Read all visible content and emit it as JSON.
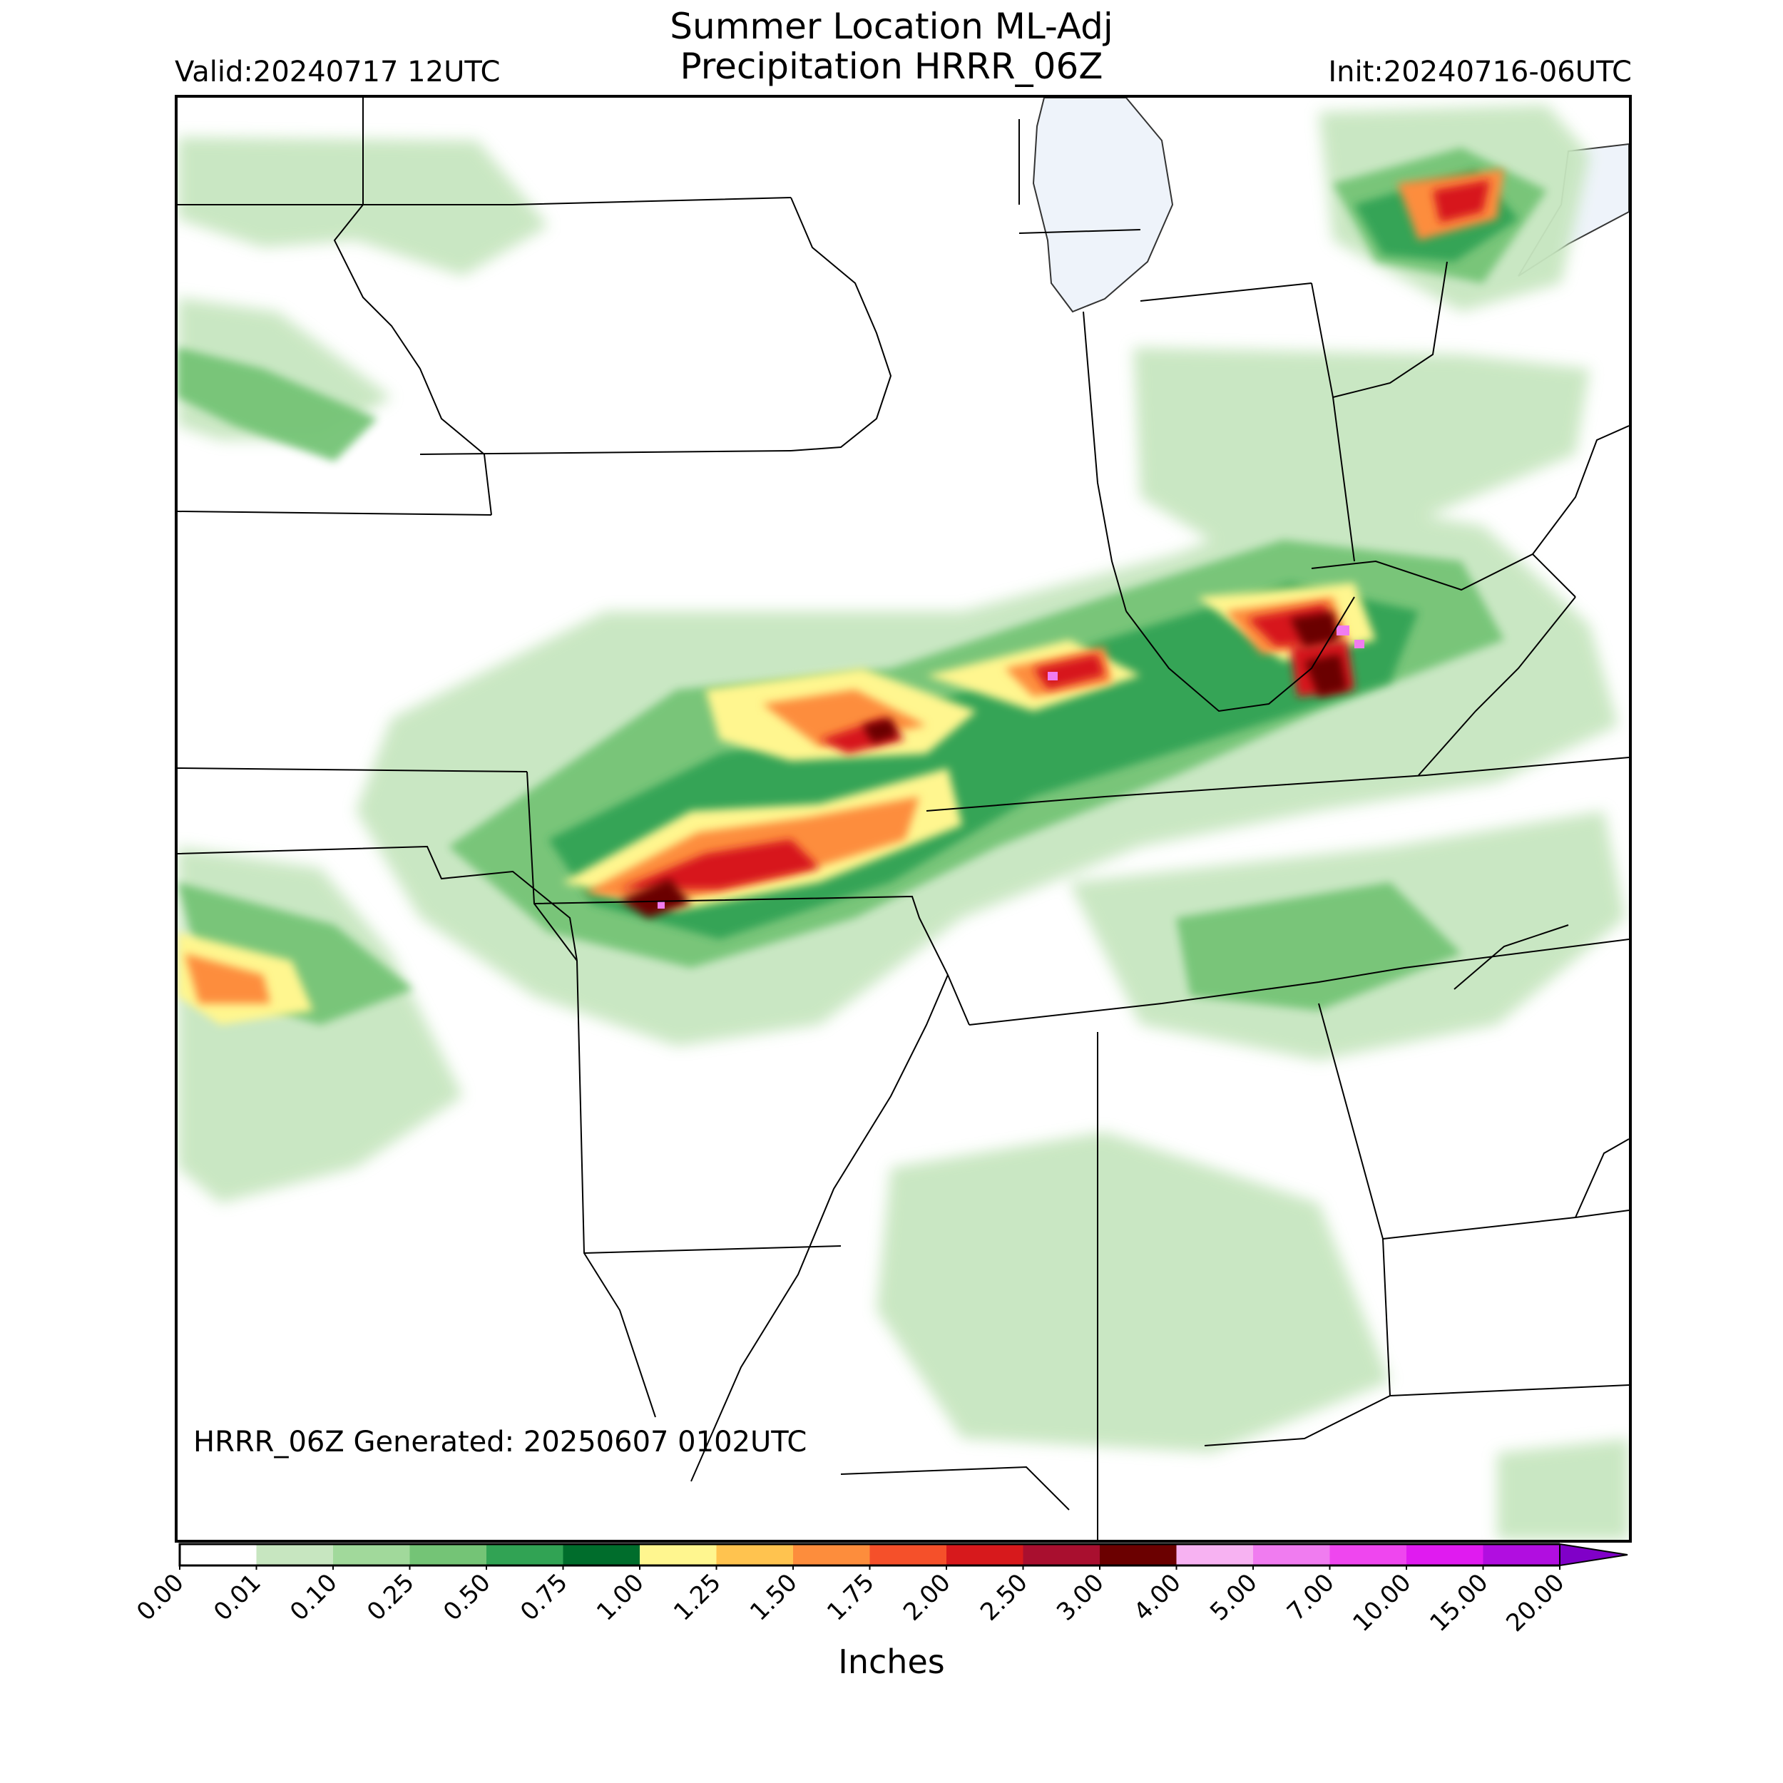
{
  "title_line1": "Summer Location ML-Adj",
  "title_line2": "Precipitation HRRR_06Z",
  "valid_text": "Valid:20240717 12UTC",
  "init_text": "Init:20240716-06UTC",
  "generated_text": "HRRR_06Z Generated: 20250607 0102UTC",
  "colorbar": {
    "units": "Inches",
    "ticks": [
      "0.00",
      "0.01",
      "0.10",
      "0.25",
      "0.50",
      "0.75",
      "1.00",
      "1.25",
      "1.50",
      "1.75",
      "2.00",
      "2.50",
      "3.00",
      "4.00",
      "5.00",
      "7.00",
      "10.00",
      "15.00",
      "20.00"
    ],
    "colors": [
      "#ffffff",
      "#c7e6c0",
      "#a1d99b",
      "#74c476",
      "#31a354",
      "#006d2c",
      "#fff68f",
      "#ffc34f",
      "#fd8d3c",
      "#f5502a",
      "#d7191c",
      "#a90f2f",
      "#6b0000",
      "#f7b2f2",
      "#f07cf0",
      "#ef46ef",
      "#e01bf0",
      "#b10ee0",
      "#8000c8"
    ],
    "extend": "max"
  },
  "map_colors": {
    "lake": "#eef3fa",
    "border": "#000000"
  }
}
